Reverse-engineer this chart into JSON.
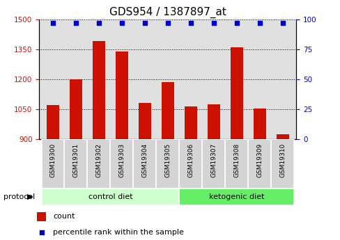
{
  "title": "GDS954 / 1387897_at",
  "samples": [
    "GSM19300",
    "GSM19301",
    "GSM19302",
    "GSM19303",
    "GSM19304",
    "GSM19305",
    "GSM19306",
    "GSM19307",
    "GSM19308",
    "GSM19309",
    "GSM19310"
  ],
  "counts": [
    1070,
    1200,
    1390,
    1340,
    1080,
    1185,
    1065,
    1075,
    1360,
    1055,
    925
  ],
  "percentile_ranks": [
    97,
    97,
    97,
    97,
    97,
    97,
    97,
    97,
    97,
    97,
    97
  ],
  "bar_color": "#cc1100",
  "dot_color": "#0000cc",
  "ylim_left": [
    900,
    1500
  ],
  "ylim_right": [
    0,
    100
  ],
  "yticks_left": [
    900,
    1050,
    1200,
    1350,
    1500
  ],
  "yticks_right": [
    0,
    25,
    50,
    75,
    100
  ],
  "control_diet_indices": [
    0,
    1,
    2,
    3,
    4,
    5
  ],
  "ketogenic_diet_indices": [
    6,
    7,
    8,
    9,
    10
  ],
  "control_label": "control diet",
  "ketogenic_label": "ketogenic diet",
  "protocol_label": "protocol",
  "legend_count_label": "count",
  "legend_percentile_label": "percentile rank within the sample",
  "bg_plot": "#e0e0e0",
  "bg_label_boxes": "#d4d4d4",
  "bg_control": "#ccffcc",
  "bg_ketogenic": "#66ee66",
  "bar_width": 0.55,
  "title_fontsize": 11,
  "tick_fontsize": 7.5,
  "label_fontsize": 8
}
